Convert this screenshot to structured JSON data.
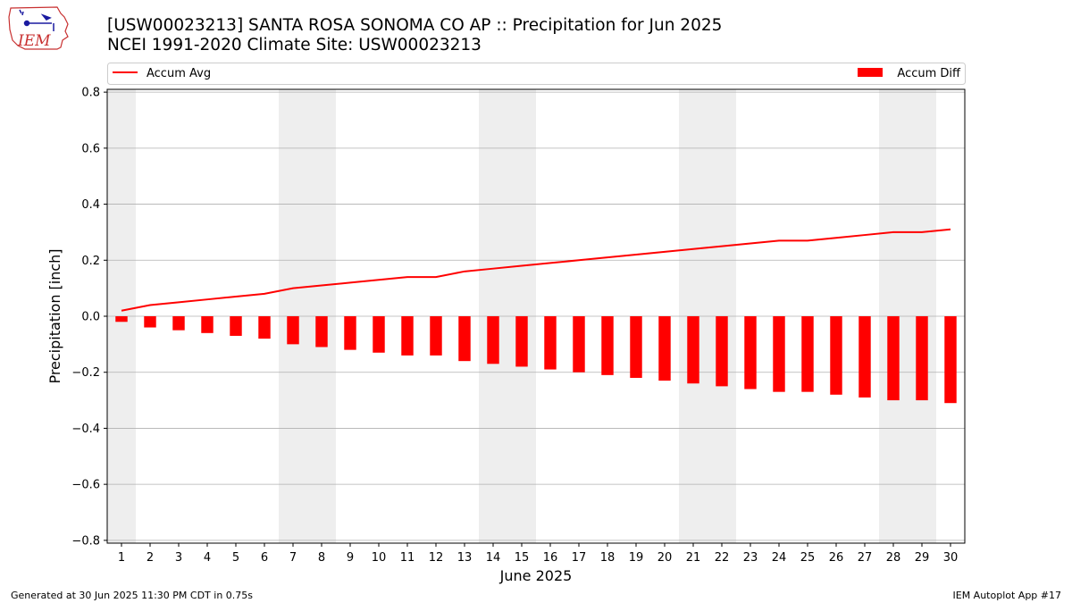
{
  "logo": {
    "text": "IEM"
  },
  "header": {
    "title_line1": "[USW00023213] SANTA ROSA SONOMA CO AP :: Precipitation for Jun 2025",
    "title_line2": "NCEI 1991-2020 Climate Site: USW00023213"
  },
  "footer": {
    "generated": "Generated at 30 Jun 2025 11:30 PM CDT in 0.75s",
    "app": "IEM Autoplot App #17"
  },
  "colors": {
    "series": "#ff0000",
    "weekend_shade": "#eeeeee",
    "grid": "#b0b0b0"
  },
  "chart_data": {
    "type": "bar",
    "xlabel": "June 2025",
    "ylabel": "Precipitation [inch]",
    "ylim": [
      -0.81,
      0.81
    ],
    "yticks": [
      -0.8,
      -0.6,
      -0.4,
      -0.2,
      0.0,
      0.2,
      0.4,
      0.6,
      0.8
    ],
    "ytick_labels": [
      "−0.8",
      "−0.6",
      "−0.4",
      "−0.2",
      "0.0",
      "0.2",
      "0.4",
      "0.6",
      "0.8"
    ],
    "grid": "horizontal",
    "legend": "top",
    "shaded_days": [
      1,
      7,
      8,
      14,
      15,
      21,
      22,
      28,
      29
    ],
    "x": [
      1,
      2,
      3,
      4,
      5,
      6,
      7,
      8,
      9,
      10,
      11,
      12,
      13,
      14,
      15,
      16,
      17,
      18,
      19,
      20,
      21,
      22,
      23,
      24,
      25,
      26,
      27,
      28,
      29,
      30
    ],
    "series": [
      {
        "name": "Accum Avg",
        "type": "line",
        "values": [
          0.02,
          0.04,
          0.05,
          0.06,
          0.07,
          0.08,
          0.1,
          0.11,
          0.12,
          0.13,
          0.14,
          0.14,
          0.16,
          0.17,
          0.18,
          0.19,
          0.2,
          0.21,
          0.22,
          0.23,
          0.24,
          0.25,
          0.26,
          0.27,
          0.27,
          0.28,
          0.29,
          0.3,
          0.3,
          0.31
        ]
      },
      {
        "name": "Accum Diff",
        "type": "bar",
        "values": [
          -0.02,
          -0.04,
          -0.05,
          -0.06,
          -0.07,
          -0.08,
          -0.1,
          -0.11,
          -0.12,
          -0.13,
          -0.14,
          -0.14,
          -0.16,
          -0.17,
          -0.18,
          -0.19,
          -0.2,
          -0.21,
          -0.22,
          -0.23,
          -0.24,
          -0.25,
          -0.26,
          -0.27,
          -0.27,
          -0.28,
          -0.29,
          -0.3,
          -0.3,
          -0.31
        ]
      }
    ]
  }
}
